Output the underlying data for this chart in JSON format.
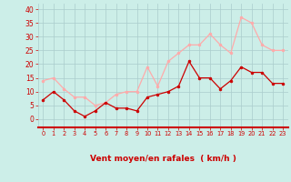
{
  "hours": [
    0,
    1,
    2,
    3,
    4,
    5,
    6,
    7,
    8,
    9,
    10,
    11,
    12,
    13,
    14,
    15,
    16,
    17,
    18,
    19,
    20,
    21,
    22,
    23
  ],
  "wind_avg": [
    7,
    10,
    7,
    3,
    1,
    3,
    6,
    4,
    4,
    3,
    8,
    9,
    10,
    12,
    21,
    15,
    15,
    11,
    14,
    19,
    17,
    17,
    13,
    13
  ],
  "wind_gust": [
    14,
    15,
    11,
    8,
    8,
    5,
    6,
    9,
    10,
    10,
    19,
    12,
    21,
    24,
    27,
    27,
    31,
    27,
    24,
    37,
    35,
    27,
    25,
    25
  ],
  "avg_color": "#cc0000",
  "gust_color": "#ffaaaa",
  "bg_color": "#cceee8",
  "grid_color": "#aacccc",
  "xlabel": "Vent moyen/en rafales  ( km/h )",
  "xlabel_color": "#cc0000",
  "tick_color": "#cc0000",
  "yticks": [
    0,
    5,
    10,
    15,
    20,
    25,
    30,
    35,
    40
  ],
  "ylim": [
    -3,
    42
  ],
  "xlim": [
    -0.5,
    23.5
  ]
}
